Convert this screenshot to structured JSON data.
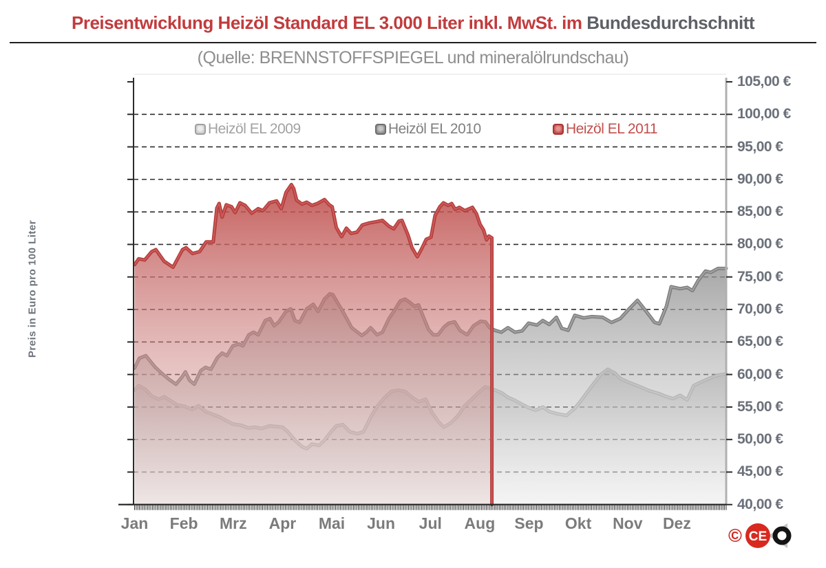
{
  "title": {
    "red_part": "Preisentwicklung Heizöl Standard EL 3.000 Liter inkl. MwSt. im",
    "dark_part": "Bundesdurchschnitt"
  },
  "subtitle": "(Quelle: BRENNSTOFFSPIEGEL  und mineralölrundschau)",
  "y_axis": {
    "title": "Preis in Euro pro 100 Liter",
    "tick_labels": [
      "105,00 €",
      "100,00 €",
      "95,00 €",
      "90,00 €",
      "85,00 €",
      "80,00 €",
      "75,00 €",
      "70,00 €",
      "65,00 €",
      "60,00 €",
      "55,00 €",
      "50,00 €",
      "45,00 €",
      "40,00 €"
    ],
    "tick_values": [
      105,
      100,
      95,
      90,
      85,
      80,
      75,
      70,
      65,
      60,
      55,
      50,
      45,
      40
    ]
  },
  "x_axis": {
    "months": [
      "Jan",
      "Feb",
      "Mrz",
      "Apr",
      "Mai",
      "Jun",
      "Jul",
      "Aug",
      "Sep",
      "Okt",
      "Nov",
      "Dez"
    ]
  },
  "legend": [
    {
      "label": "Heizöl EL 2009",
      "text_color": "#a2a2a2",
      "swatch_border": "#9f9f9f",
      "swatch_fill": "#cccccc",
      "swatch_core": "#ededed"
    },
    {
      "label": "Heizöl EL 2010",
      "text_color": "#7f7f7f",
      "swatch_border": "#6e6e6e",
      "swatch_fill": "#8f8f8f",
      "swatch_core": "#c6c6c6"
    },
    {
      "label": "Heizöl EL 2011",
      "text_color": "#c0504d",
      "swatch_border": "#a83533",
      "swatch_fill": "#c0504d",
      "swatch_core": "#e6928f"
    }
  ],
  "logo": {
    "copyright": "©",
    "text": "CETO",
    "ce_part": "CE"
  },
  "colors": {
    "title_red": "#c23b3d",
    "title_dark": "#5d6066",
    "grid": "#2e2e2e",
    "axis_left": "#2b2b2b",
    "axis_right": "#b0b0b0",
    "series_2009_line": "#b5b5b5",
    "series_2010_line": "#7d7d7d",
    "series_2011_line": "#b23c3b"
  },
  "chart_data": {
    "type": "area",
    "title": "Preisentwicklung Heizöl Standard EL 3.000 Liter inkl. MwSt. im Bundesdurchschnitt",
    "subtitle": "(Quelle: BRENNSTOFFSPIEGEL und mineralölrundschau)",
    "ylabel": "Preis in Euro pro 100 Liter",
    "ylim": [
      40,
      105
    ],
    "y_step": 5,
    "x_unit": "fraction_of_year_Jan_to_Dez",
    "grid": "dashed_horizontal",
    "legend_position": "top_inside",
    "series": [
      {
        "name": "Heizöl EL 2009",
        "line_color": "#b5b5b5",
        "points": [
          [
            0,
            57.6
          ],
          [
            0.007,
            58.3
          ],
          [
            0.017,
            57.8
          ],
          [
            0.029,
            56.7
          ],
          [
            0.041,
            56.2
          ],
          [
            0.05,
            56.6
          ],
          [
            0.062,
            55.9
          ],
          [
            0.073,
            55.3
          ],
          [
            0.085,
            55.1
          ],
          [
            0.097,
            54.6
          ],
          [
            0.108,
            55.2
          ],
          [
            0.12,
            54.3
          ],
          [
            0.131,
            53.9
          ],
          [
            0.143,
            53.5
          ],
          [
            0.155,
            52.9
          ],
          [
            0.166,
            52.4
          ],
          [
            0.18,
            52.2
          ],
          [
            0.192,
            51.8
          ],
          [
            0.203,
            51.9
          ],
          [
            0.215,
            51.7
          ],
          [
            0.228,
            52.1
          ],
          [
            0.24,
            52.0
          ],
          [
            0.25,
            51.9
          ],
          [
            0.259,
            51.2
          ],
          [
            0.271,
            49.9
          ],
          [
            0.283,
            48.9
          ],
          [
            0.291,
            48.6
          ],
          [
            0.3,
            49.3
          ],
          [
            0.312,
            49.1
          ],
          [
            0.323,
            50.1
          ],
          [
            0.333,
            51.3
          ],
          [
            0.341,
            52.1
          ],
          [
            0.352,
            52.3
          ],
          [
            0.364,
            51.2
          ],
          [
            0.376,
            50.9
          ],
          [
            0.387,
            51.2
          ],
          [
            0.399,
            53.4
          ],
          [
            0.41,
            55.1
          ],
          [
            0.422,
            56.4
          ],
          [
            0.434,
            57.4
          ],
          [
            0.445,
            57.6
          ],
          [
            0.457,
            57.4
          ],
          [
            0.469,
            56.5
          ],
          [
            0.48,
            55.8
          ],
          [
            0.492,
            56.2
          ],
          [
            0.503,
            54.1
          ],
          [
            0.515,
            52.6
          ],
          [
            0.523,
            51.9
          ],
          [
            0.535,
            52.6
          ],
          [
            0.547,
            53.7
          ],
          [
            0.558,
            55.2
          ],
          [
            0.57,
            56.2
          ],
          [
            0.581,
            57.2
          ],
          [
            0.593,
            58.1
          ],
          [
            0.604,
            57.8
          ],
          [
            0.62,
            57.2
          ],
          [
            0.631,
            56.5
          ],
          [
            0.643,
            56.0
          ],
          [
            0.655,
            55.4
          ],
          [
            0.666,
            54.9
          ],
          [
            0.678,
            54.5
          ],
          [
            0.69,
            55.0
          ],
          [
            0.701,
            54.3
          ],
          [
            0.713,
            54.0
          ],
          [
            0.73,
            53.7
          ],
          [
            0.744,
            54.8
          ],
          [
            0.753,
            55.8
          ],
          [
            0.771,
            58.0
          ],
          [
            0.788,
            60.0
          ],
          [
            0.8,
            60.8
          ],
          [
            0.812,
            60.2
          ],
          [
            0.821,
            59.4
          ],
          [
            0.835,
            58.8
          ],
          [
            0.852,
            58.2
          ],
          [
            0.87,
            57.5
          ],
          [
            0.885,
            57.1
          ],
          [
            0.899,
            56.6
          ],
          [
            0.91,
            56.3
          ],
          [
            0.922,
            56.8
          ],
          [
            0.934,
            56.1
          ],
          [
            0.945,
            58.3
          ],
          [
            0.959,
            58.9
          ],
          [
            0.974,
            59.5
          ],
          [
            0.986,
            59.9
          ],
          [
            1,
            60.1
          ]
        ]
      },
      {
        "name": "Heizöl EL 2010",
        "line_color": "#7d7d7d",
        "points": [
          [
            0,
            61.0
          ],
          [
            0.008,
            62.5
          ],
          [
            0.019,
            62.9
          ],
          [
            0.035,
            61.1
          ],
          [
            0.047,
            60.1
          ],
          [
            0.059,
            59.2
          ],
          [
            0.07,
            58.5
          ],
          [
            0.08,
            59.6
          ],
          [
            0.086,
            60.4
          ],
          [
            0.093,
            59.1
          ],
          [
            0.101,
            58.5
          ],
          [
            0.112,
            60.6
          ],
          [
            0.12,
            61.1
          ],
          [
            0.129,
            60.8
          ],
          [
            0.14,
            62.6
          ],
          [
            0.148,
            63.3
          ],
          [
            0.156,
            62.9
          ],
          [
            0.166,
            64.4
          ],
          [
            0.176,
            64.7
          ],
          [
            0.183,
            64.4
          ],
          [
            0.193,
            66.1
          ],
          [
            0.201,
            66.5
          ],
          [
            0.209,
            66.1
          ],
          [
            0.221,
            68.3
          ],
          [
            0.229,
            68.6
          ],
          [
            0.236,
            67.5
          ],
          [
            0.244,
            68.1
          ],
          [
            0.256,
            69.7
          ],
          [
            0.264,
            70.1
          ],
          [
            0.271,
            68.3
          ],
          [
            0.279,
            68.0
          ],
          [
            0.291,
            70.1
          ],
          [
            0.302,
            70.8
          ],
          [
            0.31,
            69.7
          ],
          [
            0.321,
            71.6
          ],
          [
            0.33,
            72.4
          ],
          [
            0.335,
            72.3
          ],
          [
            0.352,
            69.7
          ],
          [
            0.367,
            67.2
          ],
          [
            0.384,
            66.0
          ],
          [
            0.392,
            66.5
          ],
          [
            0.399,
            67.2
          ],
          [
            0.41,
            66.1
          ],
          [
            0.419,
            66.5
          ],
          [
            0.43,
            68.6
          ],
          [
            0.438,
            69.7
          ],
          [
            0.449,
            71.3
          ],
          [
            0.457,
            71.6
          ],
          [
            0.465,
            71.1
          ],
          [
            0.473,
            70.5
          ],
          [
            0.48,
            70.7
          ],
          [
            0.488,
            68.9
          ],
          [
            0.497,
            66.9
          ],
          [
            0.505,
            66.1
          ],
          [
            0.513,
            66.1
          ],
          [
            0.523,
            67.3
          ],
          [
            0.531,
            67.9
          ],
          [
            0.541,
            68.1
          ],
          [
            0.55,
            66.8
          ],
          [
            0.562,
            66.1
          ],
          [
            0.573,
            67.5
          ],
          [
            0.585,
            68.2
          ],
          [
            0.593,
            68.1
          ],
          [
            0.6,
            67.2
          ],
          [
            0.609,
            66.8
          ],
          [
            0.62,
            66.5
          ],
          [
            0.631,
            67.2
          ],
          [
            0.643,
            66.5
          ],
          [
            0.655,
            66.7
          ],
          [
            0.666,
            67.9
          ],
          [
            0.68,
            67.6
          ],
          [
            0.69,
            68.3
          ],
          [
            0.701,
            67.7
          ],
          [
            0.713,
            68.8
          ],
          [
            0.722,
            67.1
          ],
          [
            0.733,
            66.8
          ],
          [
            0.744,
            69.1
          ],
          [
            0.759,
            68.7
          ],
          [
            0.773,
            68.9
          ],
          [
            0.791,
            68.8
          ],
          [
            0.806,
            68.0
          ],
          [
            0.821,
            68.6
          ],
          [
            0.837,
            70.2
          ],
          [
            0.85,
            71.4
          ],
          [
            0.864,
            69.8
          ],
          [
            0.879,
            68.0
          ],
          [
            0.887,
            67.8
          ],
          [
            0.899,
            70.5
          ],
          [
            0.907,
            73.5
          ],
          [
            0.922,
            73.2
          ],
          [
            0.934,
            73.4
          ],
          [
            0.943,
            72.9
          ],
          [
            0.953,
            74.5
          ],
          [
            0.965,
            75.9
          ],
          [
            0.974,
            75.7
          ],
          [
            0.986,
            76.3
          ],
          [
            1,
            76.3
          ]
        ]
      },
      {
        "name": "Heizöl EL 2011",
        "line_color": "#b23c3b",
        "ends_at_fraction": 0.604,
        "points": [
          [
            0,
            76.9
          ],
          [
            0.007,
            77.8
          ],
          [
            0.017,
            77.6
          ],
          [
            0.029,
            78.9
          ],
          [
            0.036,
            79.2
          ],
          [
            0.05,
            77.4
          ],
          [
            0.065,
            76.5
          ],
          [
            0.081,
            79.2
          ],
          [
            0.087,
            79.5
          ],
          [
            0.098,
            78.6
          ],
          [
            0.11,
            78.9
          ],
          [
            0.121,
            80.4
          ],
          [
            0.133,
            80.4
          ],
          [
            0.139,
            85.6
          ],
          [
            0.143,
            86.3
          ],
          [
            0.148,
            84.2
          ],
          [
            0.155,
            86.1
          ],
          [
            0.164,
            85.8
          ],
          [
            0.17,
            84.9
          ],
          [
            0.178,
            86.4
          ],
          [
            0.187,
            86.0
          ],
          [
            0.198,
            84.8
          ],
          [
            0.209,
            85.5
          ],
          [
            0.217,
            85.2
          ],
          [
            0.228,
            86.4
          ],
          [
            0.24,
            86.7
          ],
          [
            0.248,
            85.5
          ],
          [
            0.256,
            88.0
          ],
          [
            0.265,
            89.2
          ],
          [
            0.269,
            88.6
          ],
          [
            0.274,
            86.8
          ],
          [
            0.283,
            86.2
          ],
          [
            0.291,
            86.5
          ],
          [
            0.3,
            86.0
          ],
          [
            0.309,
            86.3
          ],
          [
            0.321,
            86.9
          ],
          [
            0.329,
            86.1
          ],
          [
            0.334,
            85.8
          ],
          [
            0.341,
            82.6
          ],
          [
            0.35,
            81.2
          ],
          [
            0.358,
            82.5
          ],
          [
            0.366,
            81.7
          ],
          [
            0.376,
            81.9
          ],
          [
            0.385,
            83.0
          ],
          [
            0.397,
            83.3
          ],
          [
            0.409,
            83.5
          ],
          [
            0.419,
            83.7
          ],
          [
            0.43,
            82.8
          ],
          [
            0.438,
            82.4
          ],
          [
            0.447,
            83.6
          ],
          [
            0.452,
            83.7
          ],
          [
            0.462,
            81.5
          ],
          [
            0.469,
            79.5
          ],
          [
            0.478,
            78.1
          ],
          [
            0.485,
            79.3
          ],
          [
            0.493,
            80.8
          ],
          [
            0.501,
            81.1
          ],
          [
            0.508,
            84.5
          ],
          [
            0.516,
            85.8
          ],
          [
            0.522,
            86.4
          ],
          [
            0.53,
            86.0
          ],
          [
            0.536,
            86.3
          ],
          [
            0.542,
            85.4
          ],
          [
            0.549,
            85.7
          ],
          [
            0.558,
            85.2
          ],
          [
            0.566,
            85.5
          ],
          [
            0.571,
            85.7
          ],
          [
            0.578,
            84.7
          ],
          [
            0.584,
            83.1
          ],
          [
            0.59,
            82.2
          ],
          [
            0.595,
            80.7
          ],
          [
            0.599,
            81.3
          ],
          [
            0.604,
            81.0
          ]
        ]
      }
    ]
  }
}
